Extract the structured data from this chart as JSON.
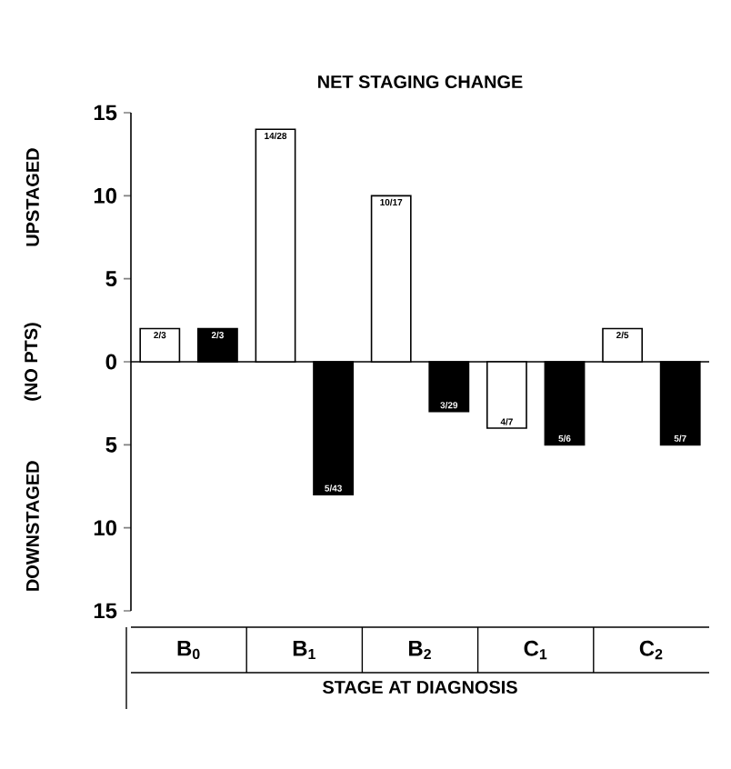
{
  "chart_data": {
    "type": "bar",
    "title": "NET STAGING CHANGE",
    "xlabel": "STAGE AT DIAGNOSIS",
    "ylabel": "(NO PTS)",
    "annotations": [
      "UPSTAGED",
      "DOWNSTAGED",
      "2/3",
      "14/28",
      "10/17",
      "4/7",
      "2/5",
      "2/3",
      "5/43",
      "3/29",
      "5/6",
      "5/7"
    ],
    "categories": [
      "B$_{0}$",
      "B$_{1}$",
      "B$_{2}$",
      "C$_{1}$",
      "C$_{2}$"
    ],
    "series": [
      {
        "color": "#ffffff",
        "values": [
          2,
          14,
          10,
          -4,
          2
        ]
      },
      {
        "color": "#000000",
        "values": [
          2,
          -8,
          -3,
          -5,
          -5
        ]
      }
    ],
    "ylim": [
      -15,
      15
    ],
    "yticks": [
      15,
      10,
      5,
      0,
      {
        "value": -5,
        "label": "5"
      },
      {
        "value": -10,
        "label": "10"
      },
      {
        "value": -15,
        "label": "15"
      }
    ]
  }
}
